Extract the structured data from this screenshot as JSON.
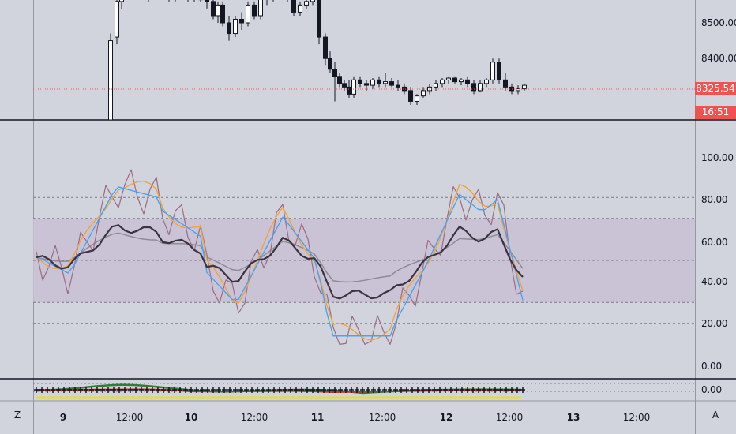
{
  "price_axis": {
    "ticks": [
      "8500.00",
      "8400.00"
    ],
    "current_price": "8325.54",
    "countdown": "16:51"
  },
  "oscillator_axis": {
    "ticks": [
      "100.00",
      "80.00",
      "60.00",
      "40.00",
      "20.00",
      "0.00"
    ]
  },
  "histogram_axis": {
    "ticks": [
      "0.00"
    ]
  },
  "time_axis": {
    "labels": [
      "9",
      "12:00",
      "10",
      "12:00",
      "11",
      "12:00",
      "12",
      "12:00",
      "13",
      "12:00"
    ]
  },
  "controls": {
    "zoom_button": "Z",
    "auto_button": "A"
  },
  "colors": {
    "background": "#d1d4dc",
    "band_fill": "#c9bfd3",
    "price_line": "#ef5350",
    "blue_line": "#4aa3f0",
    "orange_line": "#f2a33a",
    "mauve_line": "#9c6b84",
    "dark_line": "#3a3340",
    "gray_line": "#8e8a96"
  }
}
